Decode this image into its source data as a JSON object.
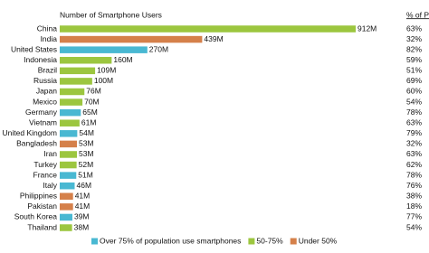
{
  "chart_data": {
    "type": "bar",
    "orientation": "horizontal",
    "title": "Number of Smartphone Users",
    "pct_header": "% of Pop.",
    "categories": [
      "China",
      "India",
      "United States",
      "Indonesia",
      "Brazil",
      "Russia",
      "Japan",
      "Mexico",
      "Germany",
      "Vietnam",
      "United Kingdom",
      "Bangladesh",
      "Iran",
      "Turkey",
      "France",
      "Italy",
      "Philippines",
      "Pakistan",
      "South Korea",
      "Thailand"
    ],
    "values": [
      912,
      439,
      270,
      160,
      109,
      100,
      76,
      70,
      65,
      61,
      54,
      53,
      53,
      52,
      51,
      46,
      41,
      41,
      39,
      38
    ],
    "value_labels": [
      "912M",
      "439M",
      "270M",
      "160M",
      "109M",
      "100M",
      "76M",
      "70M",
      "65M",
      "61M",
      "54M",
      "53M",
      "53M",
      "52M",
      "51M",
      "46M",
      "41M",
      "41M",
      "39M",
      "38M"
    ],
    "pct_of_pop": [
      "63%",
      "32%",
      "82%",
      "59%",
      "51%",
      "69%",
      "60%",
      "54%",
      "78%",
      "63%",
      "79%",
      "32%",
      "63%",
      "62%",
      "78%",
      "76%",
      "38%",
      "18%",
      "77%",
      "54%"
    ],
    "bar_colors": [
      "#9cc63f",
      "#d5804a",
      "#49b8d2",
      "#9cc63f",
      "#9cc63f",
      "#9cc63f",
      "#9cc63f",
      "#9cc63f",
      "#49b8d2",
      "#9cc63f",
      "#49b8d2",
      "#d5804a",
      "#9cc63f",
      "#9cc63f",
      "#49b8d2",
      "#49b8d2",
      "#d5804a",
      "#d5804a",
      "#49b8d2",
      "#9cc63f"
    ],
    "legend": [
      {
        "name": "Over 75% of population use smartphones",
        "color": "#49b8d2"
      },
      {
        "name": "50-75%",
        "color": "#9cc63f"
      },
      {
        "name": "Under 50%",
        "color": "#d5804a"
      }
    ]
  }
}
